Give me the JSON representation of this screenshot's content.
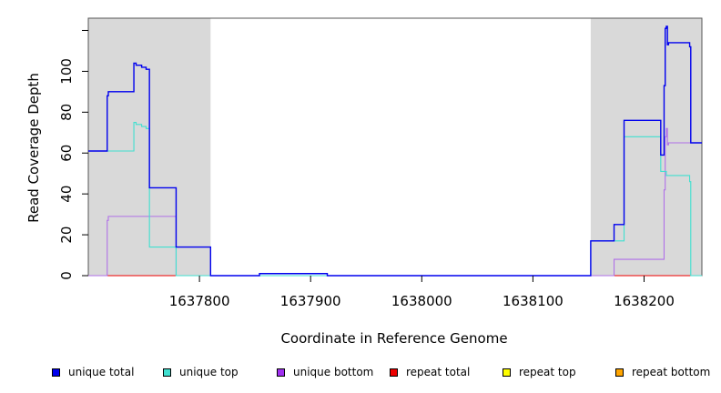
{
  "chart_data": {
    "type": "line",
    "xlabel": "Coordinate in Reference Genome",
    "ylabel": "Read Coverage Depth",
    "xlim": [
      1637700,
      1638252
    ],
    "ylim": [
      0,
      126
    ],
    "x_ticks": [
      1637800,
      1637900,
      1638000,
      1638100,
      1638200
    ],
    "x_tick_labels": [
      "1637800",
      "1637900",
      "1638000",
      "1638100",
      "1638200"
    ],
    "y_ticks": [
      0,
      20,
      40,
      60,
      80,
      100
    ],
    "y_tick_labels": [
      "0",
      "20",
      "40",
      "60",
      "80",
      "100"
    ],
    "extra_y_ticks": [
      120
    ],
    "shaded_regions": [
      [
        1637700,
        1637810
      ],
      [
        1638152,
        1638252
      ]
    ],
    "series": [
      {
        "name": "unique total",
        "color": "#0000ee",
        "steps": [
          [
            1637700,
            61
          ],
          [
            1637717,
            88
          ],
          [
            1637718,
            90
          ],
          [
            1637741,
            104
          ],
          [
            1637743,
            103
          ],
          [
            1637748,
            102
          ],
          [
            1637752,
            101
          ],
          [
            1637755,
            43
          ],
          [
            1637779,
            14
          ],
          [
            1637810,
            0
          ],
          [
            1637854,
            1
          ],
          [
            1637915,
            0
          ],
          [
            1638152,
            17
          ],
          [
            1638173,
            25
          ],
          [
            1638182,
            76
          ],
          [
            1638215,
            59
          ],
          [
            1638218,
            93
          ],
          [
            1638219,
            121
          ],
          [
            1638220,
            122
          ],
          [
            1638221,
            113
          ],
          [
            1638222,
            114
          ],
          [
            1638241,
            112
          ],
          [
            1638242,
            65
          ]
        ]
      },
      {
        "name": "unique top",
        "color": "#40e0d0",
        "steps": [
          [
            1637700,
            61
          ],
          [
            1637741,
            75
          ],
          [
            1637743,
            74
          ],
          [
            1637748,
            73
          ],
          [
            1637752,
            72
          ],
          [
            1637755,
            14
          ],
          [
            1637779,
            0
          ],
          [
            1638152,
            17
          ],
          [
            1638182,
            68
          ],
          [
            1638215,
            51
          ],
          [
            1638220,
            49
          ],
          [
            1638241,
            46
          ],
          [
            1638242,
            0
          ]
        ]
      },
      {
        "name": "unique bottom",
        "color": "#b070e8",
        "steps": [
          [
            1637700,
            0
          ],
          [
            1637717,
            27
          ],
          [
            1637718,
            29
          ],
          [
            1637779,
            0
          ],
          [
            1638173,
            8
          ],
          [
            1638218,
            42
          ],
          [
            1638219,
            68
          ],
          [
            1638220,
            72
          ],
          [
            1638221,
            64
          ],
          [
            1638222,
            65
          ],
          [
            1638252,
            65
          ]
        ]
      },
      {
        "name": "repeat total",
        "color": "#ee0000",
        "steps": [
          [
            1637700,
            0
          ],
          [
            1638252,
            0
          ]
        ]
      },
      {
        "name": "repeat top",
        "color": "#ffff00",
        "steps": [
          [
            1637700,
            0
          ],
          [
            1638252,
            0
          ]
        ]
      },
      {
        "name": "repeat bottom",
        "color": "#ffa500",
        "steps": [
          [
            1637700,
            0
          ],
          [
            1638252,
            0
          ]
        ]
      }
    ]
  },
  "legend": [
    {
      "label": "unique total",
      "color": "#0000ee"
    },
    {
      "label": "unique top",
      "color": "#40e0d0"
    },
    {
      "label": "unique bottom",
      "color": "#a030f0"
    },
    {
      "label": "repeat total",
      "color": "#ee0000"
    },
    {
      "label": "repeat top",
      "color": "#ffff00"
    },
    {
      "label": "repeat bottom",
      "color": "#ffa500"
    }
  ]
}
